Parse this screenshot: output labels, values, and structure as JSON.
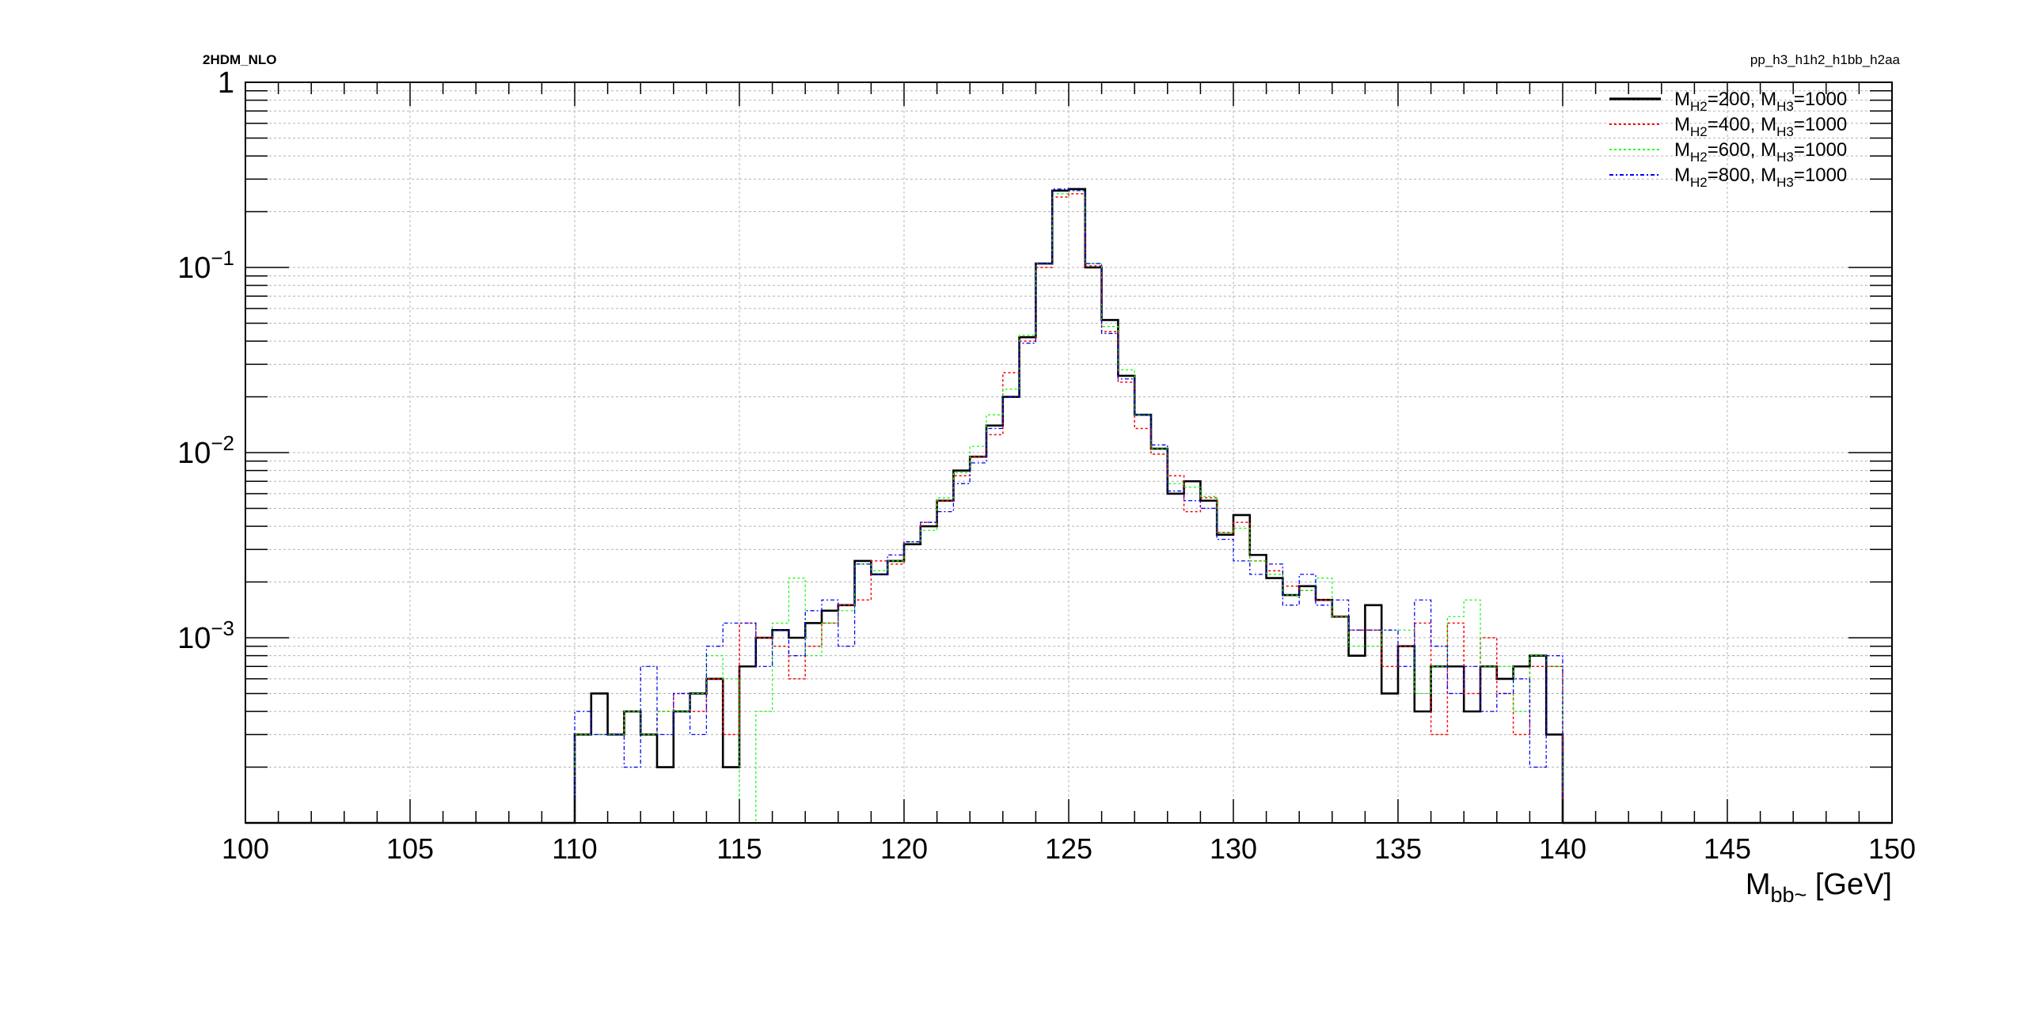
{
  "header": {
    "left_label": "2HDM_NLO",
    "right_label": "pp_h3_h1h2_h1bb_h2aa"
  },
  "chart_data": {
    "type": "line",
    "title": "",
    "xlabel": {
      "main": "M",
      "sub": "bb~",
      "unit": " [GeV]"
    },
    "ylabel": "",
    "xlim": [
      100,
      150
    ],
    "ylim": [
      0.0001,
      1
    ],
    "yscale": "log",
    "grid": true,
    "legend_position": "top-right",
    "x_ticks": [
      "100",
      "105",
      "110",
      "115",
      "120",
      "125",
      "130",
      "135",
      "140",
      "145",
      "150"
    ],
    "y_ticks": [
      {
        "base": "1",
        "exp": ""
      },
      {
        "base": "10",
        "exp": "−1"
      },
      {
        "base": "10",
        "exp": "−2"
      },
      {
        "base": "10",
        "exp": "−3"
      }
    ],
    "bin_edges": [
      110,
      110.5,
      111,
      111.5,
      112,
      112.5,
      113,
      113.5,
      114,
      114.5,
      115,
      115.5,
      116,
      116.5,
      117,
      117.5,
      118,
      118.5,
      119,
      119.5,
      120,
      120.5,
      121,
      121.5,
      122,
      122.5,
      123,
      123.5,
      124,
      124.5,
      125,
      125.5,
      126,
      126.5,
      127,
      127.5,
      128,
      128.5,
      129,
      129.5,
      130,
      130.5,
      131,
      131.5,
      132,
      132.5,
      133,
      133.5,
      134,
      134.5,
      135,
      135.5,
      136,
      136.5,
      137,
      137.5,
      138,
      138.5,
      139,
      139.5,
      140
    ],
    "series": [
      {
        "legend": {
          "m": "M",
          "s1": "H2",
          "v1": "=200, ",
          "s2": "H3",
          "v2": "=1000"
        },
        "color": "#000000",
        "dash": "",
        "width": 2.6,
        "values": [
          0.0003,
          0.0005,
          0.0003,
          0.0004,
          0.0003,
          0.0002,
          0.0004,
          0.0005,
          0.0006,
          0.0002,
          0.0007,
          0.001,
          0.0011,
          0.001,
          0.0012,
          0.0014,
          0.0015,
          0.0026,
          0.0022,
          0.0026,
          0.0032,
          0.004,
          0.0055,
          0.008,
          0.0095,
          0.014,
          0.02,
          0.042,
          0.105,
          0.26,
          0.265,
          0.1,
          0.052,
          0.026,
          0.016,
          0.0105,
          0.006,
          0.007,
          0.0055,
          0.0036,
          0.0046,
          0.0028,
          0.0021,
          0.0017,
          0.0019,
          0.0016,
          0.0013,
          0.0008,
          0.0015,
          0.0005,
          0.0009,
          0.0004,
          0.0007,
          0.0007,
          0.0004,
          0.0007,
          0.0006,
          0.0007,
          0.0008,
          0.0003
        ]
      },
      {
        "legend": {
          "m": "M",
          "s1": "H2",
          "v1": "=400, ",
          "s2": "H3",
          "v2": "=1000"
        },
        "color": "#ff0000",
        "dash": "3,3",
        "width": 1.5,
        "values": [
          0.0003,
          0.0003,
          0.0003,
          0.0004,
          0.0003,
          0.0004,
          0.0005,
          0.0004,
          0.0006,
          0.0003,
          0.0012,
          0.001,
          0.0009,
          0.0006,
          0.0009,
          0.0012,
          0.0015,
          0.0016,
          0.0026,
          0.0025,
          0.0033,
          0.0042,
          0.0055,
          0.0075,
          0.0095,
          0.0125,
          0.027,
          0.04,
          0.1,
          0.24,
          0.25,
          0.102,
          0.045,
          0.024,
          0.0135,
          0.0098,
          0.0075,
          0.0048,
          0.0057,
          0.0037,
          0.0042,
          0.0026,
          0.0023,
          0.0019,
          0.0018,
          0.0016,
          0.0013,
          0.0011,
          0.0011,
          0.0007,
          0.0009,
          0.0012,
          0.0003,
          0.0012,
          0.0005,
          0.001,
          0.0005,
          0.0003,
          0.0007,
          0.0007
        ]
      },
      {
        "legend": {
          "m": "M",
          "s1": "H2",
          "v1": "=600, ",
          "s2": "H3",
          "v2": "=1000"
        },
        "color": "#00ff00",
        "dash": "3,3",
        "width": 1.2,
        "values": [
          0.0003,
          0.0003,
          0.0003,
          0.0004,
          0.0003,
          0.0004,
          0.0004,
          0.0005,
          0.0008,
          0.0006,
          0.0001,
          0.0004,
          0.0012,
          0.0021,
          0.0008,
          0.0012,
          0.0014,
          0.0025,
          0.0023,
          0.0026,
          0.0033,
          0.0038,
          0.0057,
          0.0078,
          0.0108,
          0.016,
          0.022,
          0.043,
          0.105,
          0.25,
          0.26,
          0.105,
          0.048,
          0.028,
          0.016,
          0.0105,
          0.0068,
          0.0065,
          0.0058,
          0.0037,
          0.0039,
          0.0026,
          0.0022,
          0.0017,
          0.0018,
          0.0021,
          0.0013,
          0.0009,
          0.0009,
          0.0011,
          0.0011,
          0.0005,
          0.0007,
          0.0013,
          0.0016,
          0.0007,
          0.0007,
          0.0004,
          0.0008,
          0.0007
        ]
      },
      {
        "legend": {
          "m": "M",
          "s1": "H2",
          "v1": "=800, ",
          "s2": "H3",
          "v2": "=1000"
        },
        "color": "#0000ff",
        "dash": "5,3,2,3",
        "width": 1.3,
        "values": [
          0.0004,
          0.0003,
          0.0003,
          0.0002,
          0.0007,
          0.0003,
          0.0005,
          0.0003,
          0.0009,
          0.0012,
          0.0012,
          0.0007,
          0.0011,
          0.0008,
          0.0014,
          0.0016,
          0.0009,
          0.0025,
          0.0022,
          0.0028,
          0.0033,
          0.0042,
          0.0048,
          0.0068,
          0.0088,
          0.0135,
          0.02,
          0.039,
          0.105,
          0.265,
          0.26,
          0.105,
          0.044,
          0.025,
          0.016,
          0.011,
          0.0062,
          0.0055,
          0.005,
          0.0034,
          0.0026,
          0.0022,
          0.0025,
          0.0015,
          0.0022,
          0.0015,
          0.0016,
          0.0011,
          0.0011,
          0.0011,
          0.0007,
          0.0016,
          0.0009,
          0.0005,
          0.0007,
          0.0004,
          0.0005,
          0.0006,
          0.0002,
          0.0008
        ]
      }
    ]
  }
}
